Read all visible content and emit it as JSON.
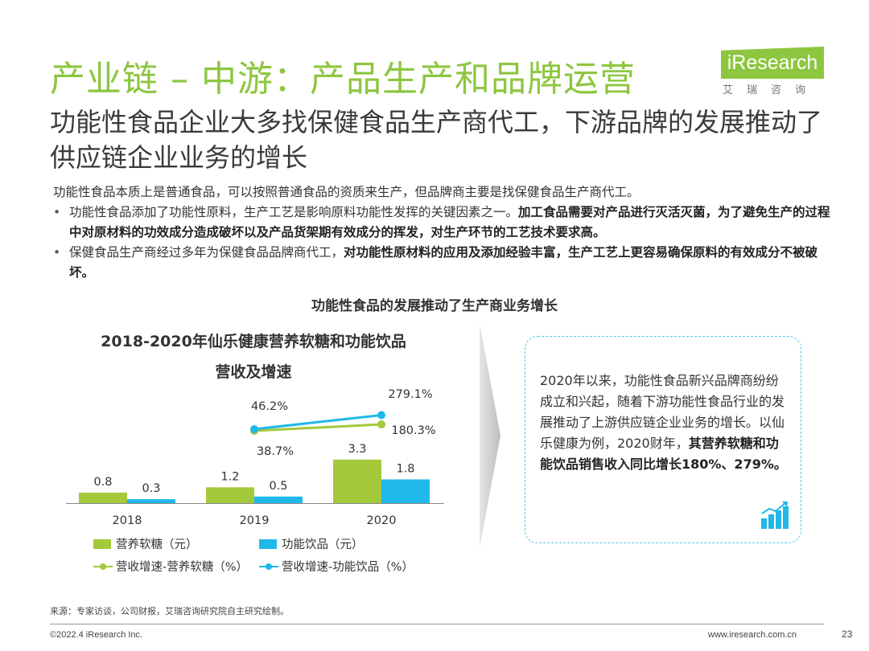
{
  "header": {
    "title": "产业链 – 中游：产品生产和品牌运营",
    "logo_text": "iResearch",
    "logo_subtext": "艾瑞咨询",
    "subtitle": "功能性食品企业大多找保健食品生产商代工，下游品牌的发展推动了供应链企业业务的增长"
  },
  "body": {
    "intro": "功能性食品本质上是普通食品，可以按照普通食品的资质来生产，但品牌商主要是找保健食品生产商代工。",
    "bullet1_normal": "功能性食品添加了功能性原料，生产工艺是影响原料功能性发挥的关键因素之一。",
    "bullet1_bold": "加工食品需要对产品进行灭活灭菌，为了避免生产的过程中对原材料的功效成分造成破坏以及产品货架期有效成分的挥发，对生产环节的工艺技术要求高。",
    "bullet2_normal": "保健食品生产商经过多年为保健食品品牌商代工，",
    "bullet2_bold": "对功能性原材料的应用及添加经验丰富，生产工艺上更容易确保原料的有效成分不被破坏。"
  },
  "section_title": "功能性食品的发展推动了生产商业务增长",
  "chart_data": {
    "type": "bar",
    "title_line1": "2018-2020年仙乐健康营养软糖和功能饮品",
    "title_line2": "营收及增速",
    "categories": [
      "2018",
      "2019",
      "2020"
    ],
    "series": [
      {
        "name": "营养软糖（元）",
        "kind": "bar",
        "values": [
          0.8,
          1.2,
          3.3
        ],
        "labels": [
          "0.8",
          "1.2",
          "3.3"
        ],
        "color": "#A4C93A"
      },
      {
        "name": "功能饮品（元）",
        "kind": "bar",
        "values": [
          0.3,
          0.5,
          1.8
        ],
        "labels": [
          "0.3",
          "0.5",
          "1.8"
        ],
        "color": "#1FB8E8"
      },
      {
        "name": "营收增速-营养软糖（%）",
        "kind": "line",
        "values": [
          null,
          38.7,
          180.3
        ],
        "labels": [
          "",
          "38.7%",
          "180.3%"
        ],
        "color": "#A4C93A"
      },
      {
        "name": "营收增速-功能饮品（%）",
        "kind": "line",
        "values": [
          null,
          46.2,
          279.1
        ],
        "labels": [
          "",
          "46.2%",
          "279.1%"
        ],
        "color": "#1FB8E8"
      }
    ]
  },
  "note": {
    "normal": "2020年以来，功能性食品新兴品牌商纷纷成立和兴起，随着下游功能性食品行业的发展推动了上游供应链企业业务的增长。以仙乐健康为例，2020财年，",
    "bold": "其营养软糖和功能饮品销售收入同比增长180%、279%。"
  },
  "footer": {
    "source": "来源：专家访谈，公司财报，艾瑞咨询研究院自主研究绘制。",
    "copyright": "©2022.4 iResearch Inc.",
    "website": "www.iresearch.com.cn",
    "page_number": "23"
  },
  "colors": {
    "title_green": "#8DC63F",
    "bar_green": "#A4C93A",
    "bar_blue": "#1FB8E8",
    "box_border": "#56C7E8"
  },
  "icons": {
    "growth": "bar-chart-growth-icon"
  }
}
